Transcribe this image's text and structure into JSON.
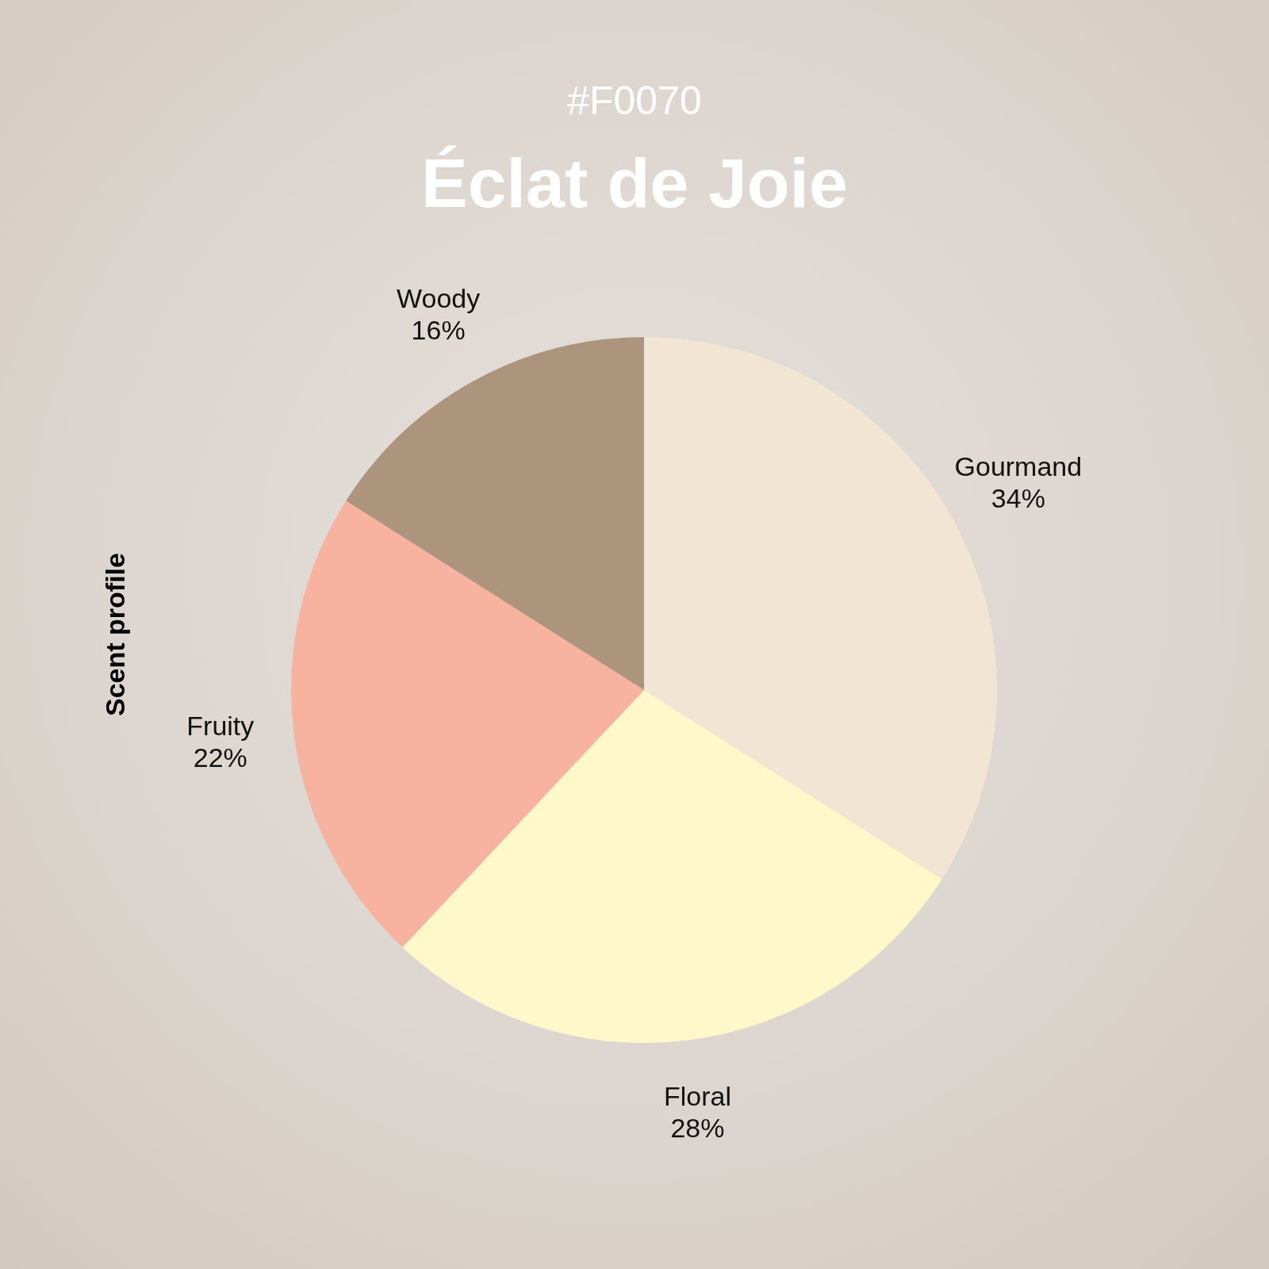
{
  "chart_data": {
    "type": "pie",
    "subtitle": "#F0070",
    "title": "Éclat de Joie",
    "ylabel": "Scent profile",
    "categories": [
      "Gourmand",
      "Floral",
      "Fruity",
      "Woody"
    ],
    "values": [
      34,
      28,
      22,
      16
    ],
    "colors": [
      "#f3e5d3",
      "#fff8cb",
      "#f8b3a0",
      "#ad957d"
    ],
    "value_labels": [
      "34%",
      "28%",
      "22%",
      "16%"
    ],
    "legend": false
  }
}
